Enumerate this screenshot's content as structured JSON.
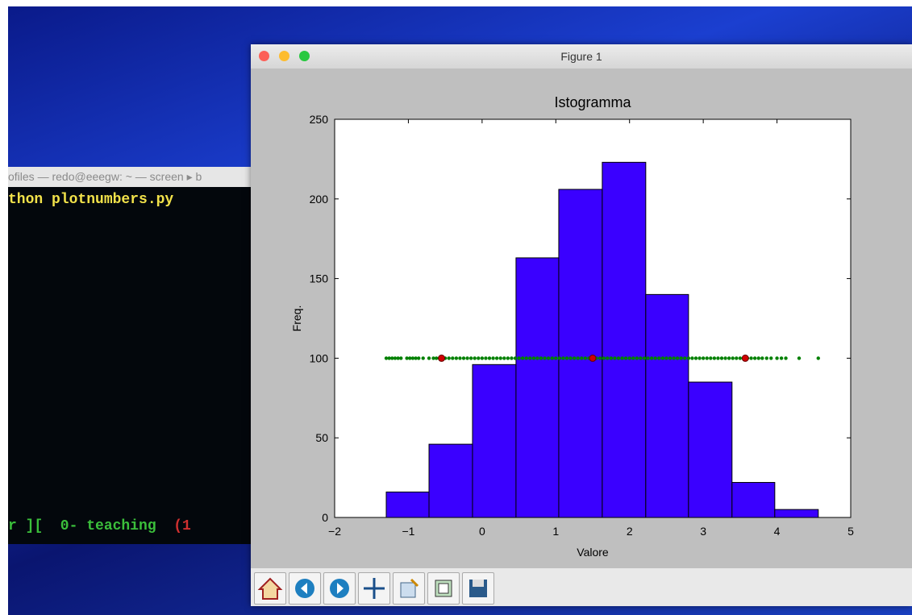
{
  "window_title": "Figure 1",
  "terminal": {
    "tab": "ofiles — redo@eeegw: ~ — screen ▸ b",
    "command": "thon plotnumbers.py",
    "status": "r ][  0- teaching  ",
    "status_tail": "(1"
  },
  "chart_data": {
    "type": "histogram",
    "title": "Istogramma",
    "xlabel": "Valore",
    "ylabel": "Freq.",
    "bins": [
      -1.3,
      -0.72,
      -0.13,
      0.46,
      1.04,
      1.63,
      2.22,
      2.8,
      3.39,
      3.97,
      4.56
    ],
    "counts": [
      16,
      46,
      96,
      163,
      206,
      223,
      140,
      85,
      22,
      5
    ],
    "color": "#3a00ff",
    "xlim": [
      -2,
      5
    ],
    "ylim": [
      0,
      250
    ],
    "xticks": [
      {
        "value": -2,
        "label": "−2"
      },
      {
        "value": -1,
        "label": "−1"
      },
      0,
      1,
      2,
      3,
      4,
      5
    ],
    "yticks": [
      0,
      50,
      100,
      150,
      200,
      250
    ],
    "points": [
      {
        "color": "#008000",
        "y": 100,
        "x": [
          -1.3,
          -1.26,
          -1.22,
          -1.18,
          -1.14,
          -1.1,
          -1.02,
          -0.98,
          -0.94,
          -0.9,
          -0.86,
          -0.8,
          -0.72,
          -0.66,
          -0.62,
          -0.58,
          -0.5,
          -0.45,
          -0.4,
          -0.35,
          -0.3,
          -0.25,
          -0.2,
          -0.15,
          -0.1,
          -0.05,
          0,
          0.05,
          0.1,
          0.15,
          0.2,
          0.25,
          0.3,
          0.35,
          0.4,
          0.45,
          0.5,
          0.55,
          0.6,
          0.65,
          0.7,
          0.75,
          0.8,
          0.85,
          0.9,
          0.95,
          1,
          1.05,
          1.1,
          1.15,
          1.2,
          1.25,
          1.3,
          1.35,
          1.4,
          1.45,
          1.5,
          1.55,
          1.6,
          1.65,
          1.7,
          1.75,
          1.8,
          1.85,
          1.9,
          1.95,
          2,
          2.05,
          2.1,
          2.15,
          2.2,
          2.25,
          2.3,
          2.35,
          2.4,
          2.45,
          2.5,
          2.55,
          2.6,
          2.65,
          2.7,
          2.75,
          2.8,
          2.85,
          2.9,
          2.95,
          3,
          3.05,
          3.1,
          3.15,
          3.2,
          3.25,
          3.3,
          3.35,
          3.4,
          3.45,
          3.5,
          3.55,
          3.6,
          3.65,
          3.7,
          3.75,
          3.8,
          3.86,
          3.92,
          4.0,
          4.06,
          4.12,
          4.3,
          4.56
        ]
      },
      {
        "color": "#d00000",
        "y": 100,
        "x": [
          -0.55,
          1.5,
          3.57
        ]
      }
    ]
  }
}
